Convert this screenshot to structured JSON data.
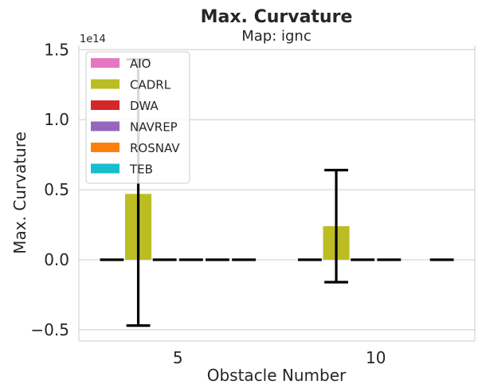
{
  "chart_data": {
    "type": "bar",
    "title": "Max. Curvature",
    "subtitle": "Map: ignc",
    "xlabel": "Obstacle Number",
    "ylabel": "Max. Curvature",
    "y_offset_label": "1e14",
    "y_scale": 100000000000000.0,
    "ylim": [
      -0.58,
      1.53
    ],
    "y_ticks": [
      -0.5,
      0.0,
      0.5,
      1.0,
      1.5
    ],
    "y_tick_labels": [
      "−0.5",
      "0.0",
      "0.5",
      "1.0",
      "1.5"
    ],
    "categories": [
      "5",
      "10"
    ],
    "grid": true,
    "legend_position": "top-left",
    "series": [
      {
        "name": "AIO",
        "color": "#e377c2",
        "values": [
          0.0,
          0.0
        ],
        "err_low": [
          0.0,
          0.0
        ],
        "err_high": [
          0.0,
          0.0
        ]
      },
      {
        "name": "CADRL",
        "color": "#bcbd22",
        "values": [
          0.47,
          0.24
        ],
        "err_low": [
          -0.47,
          -0.16
        ],
        "err_high": [
          1.43,
          0.64
        ]
      },
      {
        "name": "DWA",
        "color": "#d62728",
        "values": [
          0.0,
          0.0
        ],
        "err_low": [
          0.0,
          0.0
        ],
        "err_high": [
          0.0,
          0.0
        ]
      },
      {
        "name": "NAVREP",
        "color": "#9467bd",
        "values": [
          0.0,
          0.0
        ],
        "err_low": [
          0.0,
          0.0
        ],
        "err_high": [
          0.0,
          0.0
        ]
      },
      {
        "name": "ROSNAV",
        "color": "#ff7f0e",
        "values": [
          0.0,
          null
        ],
        "err_low": [
          0.0,
          null
        ],
        "err_high": [
          0.0,
          null
        ]
      },
      {
        "name": "TEB",
        "color": "#17becf",
        "values": [
          0.0,
          0.0
        ],
        "err_low": [
          0.0,
          0.0
        ],
        "err_high": [
          0.0,
          0.0
        ]
      }
    ]
  }
}
